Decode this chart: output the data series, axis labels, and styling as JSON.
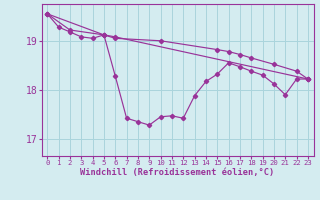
{
  "xlabel": "Windchill (Refroidissement éolien,°C)",
  "background_color": "#d4ecf0",
  "grid_color": "#aad4dc",
  "line_color": "#993399",
  "xlim": [
    -0.5,
    23.5
  ],
  "ylim": [
    16.65,
    19.75
  ],
  "yticks": [
    17,
    18,
    19
  ],
  "xticks": [
    0,
    1,
    2,
    3,
    4,
    5,
    6,
    7,
    8,
    9,
    10,
    11,
    12,
    13,
    14,
    15,
    16,
    17,
    18,
    19,
    20,
    21,
    22,
    23
  ],
  "series1_x": [
    0,
    1,
    2,
    3,
    4,
    5,
    6,
    7,
    8,
    9,
    10,
    11,
    12,
    13,
    14,
    15,
    16,
    17,
    18,
    19,
    20,
    21,
    22,
    23
  ],
  "series1_y": [
    19.55,
    19.28,
    19.18,
    19.08,
    19.05,
    19.12,
    18.28,
    17.42,
    17.35,
    17.28,
    17.45,
    17.47,
    17.42,
    17.88,
    18.17,
    18.32,
    18.55,
    18.47,
    18.38,
    18.3,
    18.12,
    17.9,
    18.22,
    18.22
  ],
  "series2_x": [
    0,
    2,
    5,
    6,
    10,
    15,
    16,
    17,
    18,
    20,
    22,
    23
  ],
  "series2_y": [
    19.55,
    19.22,
    19.12,
    19.05,
    19.0,
    18.82,
    18.78,
    18.72,
    18.65,
    18.52,
    18.38,
    18.22
  ],
  "series3_x": [
    0,
    5,
    6,
    23
  ],
  "series3_y": [
    19.55,
    19.12,
    19.08,
    18.22
  ]
}
